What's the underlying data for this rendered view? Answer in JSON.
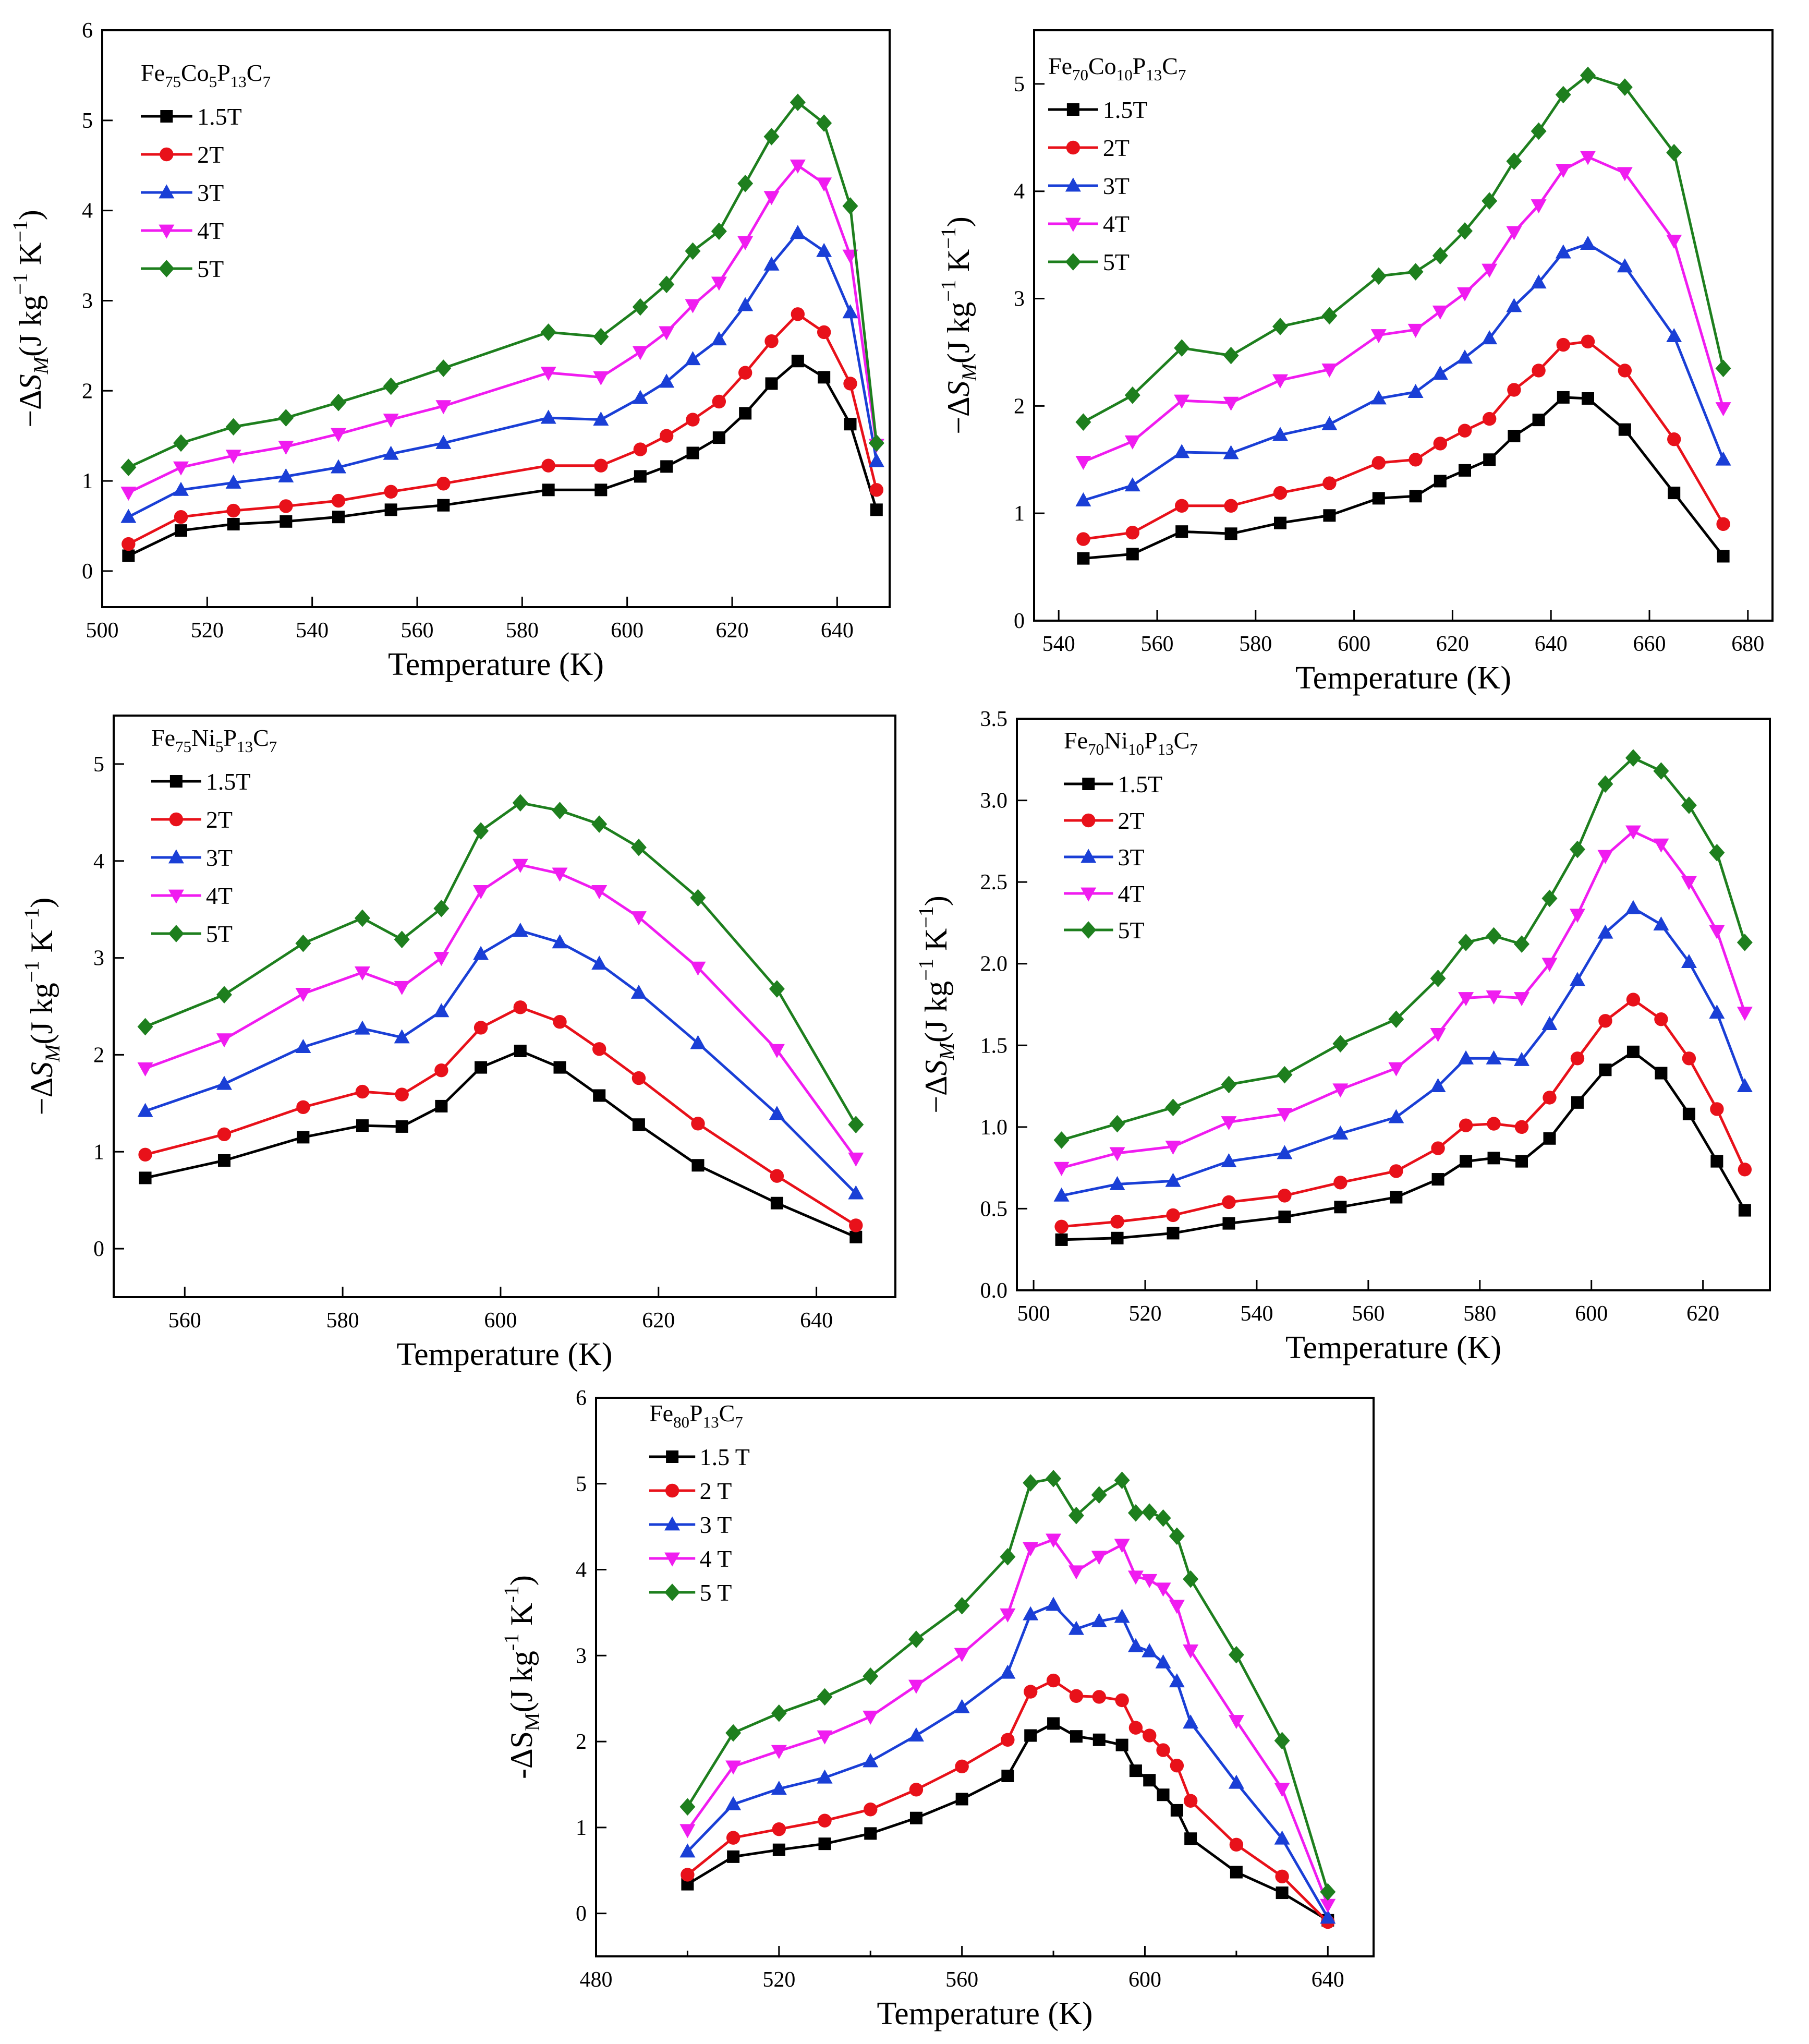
{
  "figure": {
    "description_label": "Magnetic entropy change vs temperature panels"
  },
  "legend_symbols": {
    "1.5T": "square",
    "2T": "circle",
    "3T": "triangle-up",
    "4T": "triangle-down",
    "5T": "diamond"
  },
  "colors": {
    "1.5T": "#000000",
    "2T": "#e8111a",
    "3T": "#1a3fd6",
    "4T": "#f01cf0",
    "5T": "#1e7f1e"
  },
  "chart_data": [
    {
      "id": "fe75co5",
      "type": "line",
      "title": "Fe75Co5P13C7",
      "title_parts": [
        [
          "Fe",
          false
        ],
        [
          "75",
          true
        ],
        [
          "Co",
          false
        ],
        [
          "5",
          true
        ],
        [
          "P",
          false
        ],
        [
          "13",
          true
        ],
        [
          "C",
          false
        ],
        [
          "7",
          true
        ]
      ],
      "xlabel": "Temperature (K)",
      "ylabel_style": "minus",
      "xlim": [
        500,
        650
      ],
      "ylim": [
        -0.4,
        6
      ],
      "xticks": [
        500,
        520,
        540,
        560,
        580,
        600,
        620,
        640
      ],
      "xtick_labels": [
        "500",
        "520",
        "540",
        "560",
        "580",
        "600",
        "620",
        "640"
      ],
      "yticks": [
        0,
        1,
        2,
        3,
        4,
        5,
        6
      ],
      "ytick_labels": [
        "0",
        "1",
        "2",
        "3",
        "4",
        "5",
        "6"
      ],
      "x": [
        505,
        515,
        525,
        535,
        545,
        555,
        565,
        585,
        595,
        602.5,
        607.5,
        612.5,
        617.5,
        622.5,
        627.5,
        632.5,
        637.5,
        642.5,
        647.5
      ],
      "series": [
        {
          "name": "1.5T",
          "label": "1.5T",
          "values": [
            0.17,
            0.45,
            0.52,
            0.55,
            0.6,
            0.68,
            0.73,
            0.9,
            0.9,
            1.05,
            1.16,
            1.31,
            1.48,
            1.75,
            2.08,
            2.33,
            2.15,
            1.63,
            0.68
          ]
        },
        {
          "name": "2T",
          "label": "2T",
          "values": [
            0.3,
            0.6,
            0.67,
            0.72,
            0.78,
            0.88,
            0.97,
            1.17,
            1.17,
            1.35,
            1.5,
            1.68,
            1.88,
            2.2,
            2.55,
            2.85,
            2.65,
            2.08,
            0.9
          ]
        },
        {
          "name": "3T",
          "label": "3T",
          "values": [
            0.6,
            0.9,
            0.98,
            1.05,
            1.15,
            1.3,
            1.42,
            1.7,
            1.68,
            1.92,
            2.1,
            2.35,
            2.57,
            2.95,
            3.4,
            3.75,
            3.55,
            2.87,
            1.22
          ]
        },
        {
          "name": "4T",
          "label": "4T",
          "values": [
            0.87,
            1.15,
            1.28,
            1.38,
            1.52,
            1.68,
            1.83,
            2.2,
            2.15,
            2.43,
            2.65,
            2.95,
            3.2,
            3.65,
            4.15,
            4.5,
            4.3,
            3.5,
            1.4
          ]
        },
        {
          "name": "5T",
          "label": "5T",
          "values": [
            1.15,
            1.42,
            1.6,
            1.7,
            1.87,
            2.05,
            2.25,
            2.65,
            2.6,
            2.93,
            3.18,
            3.55,
            3.77,
            4.3,
            4.82,
            5.2,
            4.97,
            4.05,
            1.42
          ]
        }
      ]
    },
    {
      "id": "fe70co10",
      "type": "line",
      "title": "Fe70Co10P13C7",
      "title_parts": [
        [
          "Fe",
          false
        ],
        [
          "70",
          true
        ],
        [
          "Co",
          false
        ],
        [
          "10",
          true
        ],
        [
          "P",
          false
        ],
        [
          "13",
          true
        ],
        [
          "C",
          false
        ],
        [
          "7",
          true
        ]
      ],
      "xlabel": "Temperature (K)",
      "ylabel_style": "minus",
      "xlim": [
        535,
        685
      ],
      "ylim": [
        0,
        5.5
      ],
      "xticks": [
        540,
        560,
        580,
        600,
        620,
        640,
        660,
        680
      ],
      "xtick_labels": [
        "540",
        "560",
        "580",
        "600",
        "620",
        "640",
        "660",
        "680"
      ],
      "yticks": [
        0,
        1,
        2,
        3,
        4,
        5
      ],
      "ytick_labels": [
        "0",
        "1",
        "2",
        "3",
        "4",
        "5"
      ],
      "x": [
        545,
        555,
        565,
        575,
        585,
        595,
        605,
        612.5,
        617.5,
        622.5,
        627.5,
        632.5,
        637.5,
        642.5,
        647.5,
        655,
        665,
        675
      ],
      "series": [
        {
          "name": "1.5T",
          "label": "1.5T",
          "values": [
            0.58,
            0.62,
            0.83,
            0.81,
            0.91,
            0.98,
            1.14,
            1.16,
            1.3,
            1.4,
            1.5,
            1.72,
            1.87,
            2.08,
            2.07,
            1.78,
            1.19,
            0.6
          ]
        },
        {
          "name": "2T",
          "label": "2T",
          "values": [
            0.76,
            0.82,
            1.07,
            1.07,
            1.19,
            1.28,
            1.47,
            1.5,
            1.65,
            1.77,
            1.88,
            2.15,
            2.33,
            2.57,
            2.6,
            2.33,
            1.69,
            0.9
          ]
        },
        {
          "name": "3T",
          "label": "3T",
          "values": [
            1.12,
            1.26,
            1.57,
            1.56,
            1.73,
            1.83,
            2.07,
            2.13,
            2.3,
            2.45,
            2.63,
            2.93,
            3.15,
            3.43,
            3.51,
            3.3,
            2.65,
            1.5
          ]
        },
        {
          "name": "4T",
          "label": "4T",
          "values": [
            1.48,
            1.67,
            2.05,
            2.03,
            2.24,
            2.34,
            2.66,
            2.71,
            2.88,
            3.05,
            3.27,
            3.62,
            3.87,
            4.2,
            4.32,
            4.17,
            3.54,
            1.98
          ]
        },
        {
          "name": "5T",
          "label": "5T",
          "values": [
            1.85,
            2.1,
            2.54,
            2.47,
            2.74,
            2.84,
            3.21,
            3.25,
            3.4,
            3.63,
            3.91,
            4.28,
            4.56,
            4.9,
            5.08,
            4.97,
            4.36,
            2.35
          ]
        }
      ]
    },
    {
      "id": "fe75ni5",
      "type": "line",
      "title": "Fe75Ni5P13C7",
      "title_parts": [
        [
          "Fe",
          false
        ],
        [
          "75",
          true
        ],
        [
          "Ni",
          false
        ],
        [
          "5",
          true
        ],
        [
          "P",
          false
        ],
        [
          "13",
          true
        ],
        [
          "C",
          false
        ],
        [
          "7",
          true
        ]
      ],
      "xlabel": "Temperature (K)",
      "ylabel_style": "minus",
      "xlim": [
        551,
        650
      ],
      "ylim": [
        -0.5,
        5.5
      ],
      "xticks": [
        560,
        580,
        600,
        620,
        640
      ],
      "xtick_labels": [
        "560",
        "580",
        "600",
        "620",
        "640"
      ],
      "yticks": [
        0,
        1,
        2,
        3,
        4,
        5
      ],
      "ytick_labels": [
        "0",
        "1",
        "2",
        "3",
        "4",
        "5"
      ],
      "x": [
        555,
        565,
        575,
        582.5,
        587.5,
        592.5,
        597.5,
        602.5,
        607.5,
        612.5,
        617.5,
        625,
        635,
        645
      ],
      "series": [
        {
          "name": "1.5T",
          "label": "1.5T",
          "values": [
            0.73,
            0.91,
            1.15,
            1.27,
            1.26,
            1.47,
            1.87,
            2.04,
            1.87,
            1.58,
            1.28,
            0.86,
            0.47,
            0.12
          ]
        },
        {
          "name": "2T",
          "label": "2T",
          "values": [
            0.97,
            1.18,
            1.46,
            1.62,
            1.59,
            1.84,
            2.28,
            2.49,
            2.34,
            2.06,
            1.76,
            1.29,
            0.75,
            0.24
          ]
        },
        {
          "name": "3T",
          "label": "3T",
          "values": [
            1.42,
            1.7,
            2.08,
            2.27,
            2.18,
            2.45,
            3.04,
            3.28,
            3.16,
            2.94,
            2.64,
            2.12,
            1.39,
            0.57
          ]
        },
        {
          "name": "4T",
          "label": "4T",
          "values": [
            1.86,
            2.16,
            2.63,
            2.85,
            2.7,
            3.0,
            3.69,
            3.96,
            3.87,
            3.69,
            3.42,
            2.9,
            2.05,
            0.93
          ]
        },
        {
          "name": "5T",
          "label": "5T",
          "values": [
            2.29,
            2.62,
            3.15,
            3.41,
            3.19,
            3.51,
            4.31,
            4.6,
            4.52,
            4.38,
            4.14,
            3.62,
            2.68,
            1.28
          ]
        }
      ]
    },
    {
      "id": "fe70ni10",
      "type": "line",
      "title": "Fe70Ni10P13C7",
      "title_parts": [
        [
          "Fe",
          false
        ],
        [
          "70",
          true
        ],
        [
          "Ni",
          false
        ],
        [
          "10",
          true
        ],
        [
          "P",
          false
        ],
        [
          "13",
          true
        ],
        [
          "C",
          false
        ],
        [
          "7",
          true
        ]
      ],
      "xlabel": "Temperature (K)",
      "ylabel_style": "minus",
      "xlim": [
        497,
        632
      ],
      "ylim": [
        0,
        3.5
      ],
      "xticks": [
        500,
        520,
        540,
        560,
        580,
        600,
        620
      ],
      "xtick_labels": [
        "500",
        "520",
        "540",
        "560",
        "580",
        "600",
        "620"
      ],
      "yticks": [
        0,
        0.5,
        1,
        1.5,
        2,
        2.5,
        3,
        3.5
      ],
      "ytick_labels": [
        "0.0",
        "0.5",
        "1.0",
        "1.5",
        "2.0",
        "2.5",
        "3.0",
        "3.5"
      ],
      "x": [
        505,
        515,
        525,
        535,
        545,
        555,
        565,
        572.5,
        577.5,
        582.5,
        587.5,
        592.5,
        597.5,
        602.5,
        607.5,
        612.5,
        617.5,
        622.5,
        627.5
      ],
      "series": [
        {
          "name": "1.5T",
          "label": "1.5T",
          "values": [
            0.31,
            0.32,
            0.35,
            0.41,
            0.45,
            0.51,
            0.57,
            0.68,
            0.79,
            0.81,
            0.79,
            0.93,
            1.15,
            1.35,
            1.46,
            1.33,
            1.08,
            0.79,
            0.49
          ]
        },
        {
          "name": "2T",
          "label": "2T",
          "values": [
            0.39,
            0.42,
            0.46,
            0.54,
            0.58,
            0.66,
            0.73,
            0.87,
            1.01,
            1.02,
            1.0,
            1.18,
            1.42,
            1.65,
            1.78,
            1.66,
            1.42,
            1.11,
            0.74
          ]
        },
        {
          "name": "3T",
          "label": "3T",
          "values": [
            0.58,
            0.65,
            0.67,
            0.79,
            0.84,
            0.96,
            1.06,
            1.25,
            1.42,
            1.42,
            1.41,
            1.63,
            1.9,
            2.19,
            2.34,
            2.24,
            2.01,
            1.7,
            1.25
          ]
        },
        {
          "name": "4T",
          "label": "4T",
          "values": [
            0.75,
            0.84,
            0.88,
            1.03,
            1.08,
            1.23,
            1.36,
            1.57,
            1.79,
            1.8,
            1.79,
            2.0,
            2.3,
            2.66,
            2.81,
            2.73,
            2.5,
            2.2,
            1.7
          ]
        },
        {
          "name": "5T",
          "label": "5T",
          "values": [
            0.92,
            1.02,
            1.12,
            1.26,
            1.32,
            1.51,
            1.66,
            1.91,
            2.13,
            2.17,
            2.12,
            2.4,
            2.7,
            3.1,
            3.26,
            3.18,
            2.97,
            2.68,
            2.13
          ]
        }
      ]
    },
    {
      "id": "fe80",
      "type": "line",
      "title": "Fe80P13C7",
      "title_parts": [
        [
          "Fe",
          false
        ],
        [
          "80",
          true
        ],
        [
          "P",
          false
        ],
        [
          "13",
          true
        ],
        [
          "C",
          false
        ],
        [
          "7",
          true
        ]
      ],
      "xlabel": "Temperature (K)",
      "ylabel_style": "plain",
      "xlim": [
        480,
        650
      ],
      "ylim": [
        -0.5,
        6
      ],
      "xticks": [
        480,
        520,
        560,
        600,
        640
      ],
      "xtick_labels": [
        "480",
        "520",
        "560",
        "600",
        "640"
      ],
      "xminor": [
        500,
        540,
        580,
        620
      ],
      "yticks": [
        0,
        1,
        2,
        3,
        4,
        5,
        6
      ],
      "ytick_labels": [
        "0",
        "1",
        "2",
        "3",
        "4",
        "5",
        "6"
      ],
      "x": [
        500,
        510,
        520,
        530,
        540,
        550,
        560,
        570,
        575,
        580,
        585,
        590,
        595,
        598,
        601,
        604,
        607,
        610,
        620,
        630,
        640
      ],
      "series": [
        {
          "name": "1.5T",
          "label": "1.5 T",
          "values": [
            0.34,
            0.66,
            0.74,
            0.81,
            0.93,
            1.11,
            1.33,
            1.6,
            2.07,
            2.21,
            2.06,
            2.02,
            1.96,
            1.66,
            1.55,
            1.38,
            1.2,
            0.87,
            0.48,
            0.24,
            -0.08
          ]
        },
        {
          "name": "2T",
          "label": "2 T",
          "values": [
            0.45,
            0.88,
            0.98,
            1.08,
            1.21,
            1.44,
            1.71,
            2.02,
            2.58,
            2.71,
            2.53,
            2.52,
            2.48,
            2.16,
            2.07,
            1.9,
            1.72,
            1.31,
            0.8,
            0.43,
            -0.1
          ]
        },
        {
          "name": "3T",
          "label": "3 T",
          "values": [
            0.72,
            1.27,
            1.45,
            1.58,
            1.77,
            2.07,
            2.4,
            2.8,
            3.48,
            3.59,
            3.31,
            3.4,
            3.45,
            3.11,
            3.05,
            2.92,
            2.7,
            2.22,
            1.52,
            0.87,
            -0.05
          ]
        },
        {
          "name": "4T",
          "label": "4 T",
          "values": [
            0.97,
            1.71,
            1.89,
            2.06,
            2.29,
            2.65,
            3.02,
            3.48,
            4.25,
            4.35,
            3.98,
            4.15,
            4.29,
            3.92,
            3.88,
            3.78,
            3.58,
            3.06,
            2.24,
            1.45,
            0.1
          ]
        },
        {
          "name": "5T",
          "label": "5 T",
          "values": [
            1.24,
            2.1,
            2.33,
            2.52,
            2.76,
            3.19,
            3.58,
            4.15,
            5.01,
            5.06,
            4.63,
            4.87,
            5.04,
            4.66,
            4.67,
            4.6,
            4.39,
            3.89,
            3.01,
            2.01,
            0.25
          ]
        }
      ]
    }
  ]
}
